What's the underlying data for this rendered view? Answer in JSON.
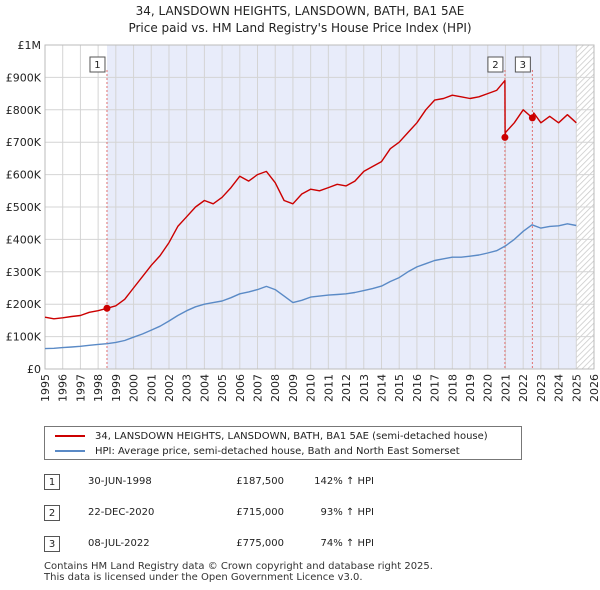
{
  "title_line1": "34, LANSDOWN HEIGHTS, LANSDOWN, BATH, BA1 5AE",
  "title_line2": "Price paid vs. HM Land Registry's House Price Index (HPI)",
  "colors": {
    "red": "#cc0000",
    "blue": "#5a8ac6",
    "shade": "#e8ecfa",
    "grid": "#d4d4d4",
    "vline": "#e07070"
  },
  "legend": {
    "red_label": "34, LANSDOWN HEIGHTS, LANSDOWN, BATH, BA1 5AE (semi-detached house)",
    "blue_label": "HPI: Average price, semi-detached house, Bath and North East Somerset"
  },
  "transactions": [
    {
      "num": "1",
      "date": "30-JUN-1998",
      "price": "£187,500",
      "hpi": "142% ↑ HPI"
    },
    {
      "num": "2",
      "date": "22-DEC-2020",
      "price": "£715,000",
      "hpi": "93% ↑ HPI"
    },
    {
      "num": "3",
      "date": "08-JUL-2022",
      "price": "£775,000",
      "hpi": "74% ↑ HPI"
    }
  ],
  "footer": {
    "line1": "Contains HM Land Registry data © Crown copyright and database right 2025.",
    "line2": "This data is licensed under the Open Government Licence v3.0."
  },
  "chart_data": {
    "type": "line",
    "title": "34, LANSDOWN HEIGHTS, LANSDOWN, BATH, BA1 5AE",
    "subtitle": "Price paid vs. HM Land Registry's House Price Index (HPI)",
    "xlim": [
      1995,
      2026
    ],
    "ylim": [
      0,
      1000000
    ],
    "x_ticks": [
      1995,
      1996,
      1997,
      1998,
      1999,
      2000,
      2001,
      2002,
      2003,
      2004,
      2005,
      2006,
      2007,
      2008,
      2009,
      2010,
      2011,
      2012,
      2013,
      2014,
      2015,
      2016,
      2017,
      2018,
      2019,
      2020,
      2021,
      2022,
      2023,
      2024,
      2025,
      2026
    ],
    "y_ticks": [
      {
        "value": 0,
        "label": "£0"
      },
      {
        "value": 100000,
        "label": "£100K"
      },
      {
        "value": 200000,
        "label": "£200K"
      },
      {
        "value": 300000,
        "label": "£300K"
      },
      {
        "value": 400000,
        "label": "£400K"
      },
      {
        "value": 500000,
        "label": "£500K"
      },
      {
        "value": 600000,
        "label": "£600K"
      },
      {
        "value": 700000,
        "label": "£700K"
      },
      {
        "value": 800000,
        "label": "£800K"
      },
      {
        "value": 900000,
        "label": "£900K"
      },
      {
        "value": 1000000,
        "label": "£1M"
      }
    ],
    "grid": true,
    "shaded_range": [
      1998.5,
      2025.0
    ],
    "forecast_start": 2025.0,
    "series": [
      {
        "name": "34, LANSDOWN HEIGHTS, LANSDOWN, BATH, BA1 5AE (semi-detached house)",
        "color_key": "red",
        "x": [
          1995.0,
          1995.5,
          1996.0,
          1996.5,
          1997.0,
          1997.5,
          1998.0,
          1998.5,
          1999.0,
          1999.5,
          2000.0,
          2000.5,
          2001.0,
          2001.5,
          2002.0,
          2002.5,
          2003.0,
          2003.5,
          2004.0,
          2004.5,
          2005.0,
          2005.5,
          2006.0,
          2006.5,
          2007.0,
          2007.5,
          2008.0,
          2008.5,
          2009.0,
          2009.5,
          2010.0,
          2010.5,
          2011.0,
          2011.5,
          2012.0,
          2012.5,
          2013.0,
          2013.5,
          2014.0,
          2014.5,
          2015.0,
          2015.5,
          2016.0,
          2016.5,
          2017.0,
          2017.5,
          2018.0,
          2018.5,
          2019.0,
          2019.5,
          2020.0,
          2020.5,
          2020.97,
          2020.98,
          2021.0,
          2021.5,
          2022.0,
          2022.52,
          2022.6,
          2023.0,
          2023.5,
          2024.0,
          2024.5,
          2025.0
        ],
        "values": [
          160000,
          155000,
          158000,
          162000,
          165000,
          175000,
          180000,
          187500,
          195000,
          215000,
          250000,
          285000,
          320000,
          350000,
          390000,
          440000,
          470000,
          500000,
          520000,
          510000,
          530000,
          560000,
          595000,
          580000,
          600000,
          610000,
          575000,
          520000,
          510000,
          540000,
          555000,
          550000,
          560000,
          570000,
          565000,
          580000,
          610000,
          625000,
          640000,
          680000,
          700000,
          730000,
          760000,
          800000,
          830000,
          835000,
          845000,
          840000,
          835000,
          840000,
          850000,
          860000,
          890000,
          715000,
          730000,
          760000,
          800000,
          775000,
          790000,
          760000,
          780000,
          760000,
          785000,
          760000
        ]
      },
      {
        "name": "HPI: Average price, semi-detached house, Bath and North East Somerset",
        "color_key": "blue",
        "x": [
          1995.0,
          1995.5,
          1996.0,
          1996.5,
          1997.0,
          1997.5,
          1998.0,
          1998.5,
          1999.0,
          1999.5,
          2000.0,
          2000.5,
          2001.0,
          2001.5,
          2002.0,
          2002.5,
          2003.0,
          2003.5,
          2004.0,
          2004.5,
          2005.0,
          2005.5,
          2006.0,
          2006.5,
          2007.0,
          2007.5,
          2008.0,
          2008.5,
          2009.0,
          2009.5,
          2010.0,
          2010.5,
          2011.0,
          2011.5,
          2012.0,
          2012.5,
          2013.0,
          2013.5,
          2014.0,
          2014.5,
          2015.0,
          2015.5,
          2016.0,
          2016.5,
          2017.0,
          2017.5,
          2018.0,
          2018.5,
          2019.0,
          2019.5,
          2020.0,
          2020.5,
          2021.0,
          2021.5,
          2022.0,
          2022.5,
          2023.0,
          2023.5,
          2024.0,
          2024.5,
          2025.0
        ],
        "values": [
          63000,
          64000,
          66000,
          68000,
          70000,
          73000,
          76000,
          78000,
          82000,
          88000,
          98000,
          108000,
          120000,
          132000,
          148000,
          165000,
          180000,
          192000,
          200000,
          205000,
          210000,
          220000,
          232000,
          238000,
          245000,
          255000,
          245000,
          225000,
          205000,
          212000,
          222000,
          225000,
          228000,
          230000,
          232000,
          236000,
          242000,
          248000,
          256000,
          270000,
          282000,
          300000,
          315000,
          325000,
          335000,
          340000,
          345000,
          345000,
          348000,
          352000,
          358000,
          365000,
          380000,
          400000,
          425000,
          445000,
          435000,
          440000,
          442000,
          448000,
          443000
        ]
      }
    ],
    "markers": [
      {
        "label": "1",
        "x": 1998.5,
        "y": 187500
      },
      {
        "label": "2",
        "x": 2020.97,
        "y": 715000
      },
      {
        "label": "3",
        "x": 2022.52,
        "y": 775000
      }
    ]
  }
}
